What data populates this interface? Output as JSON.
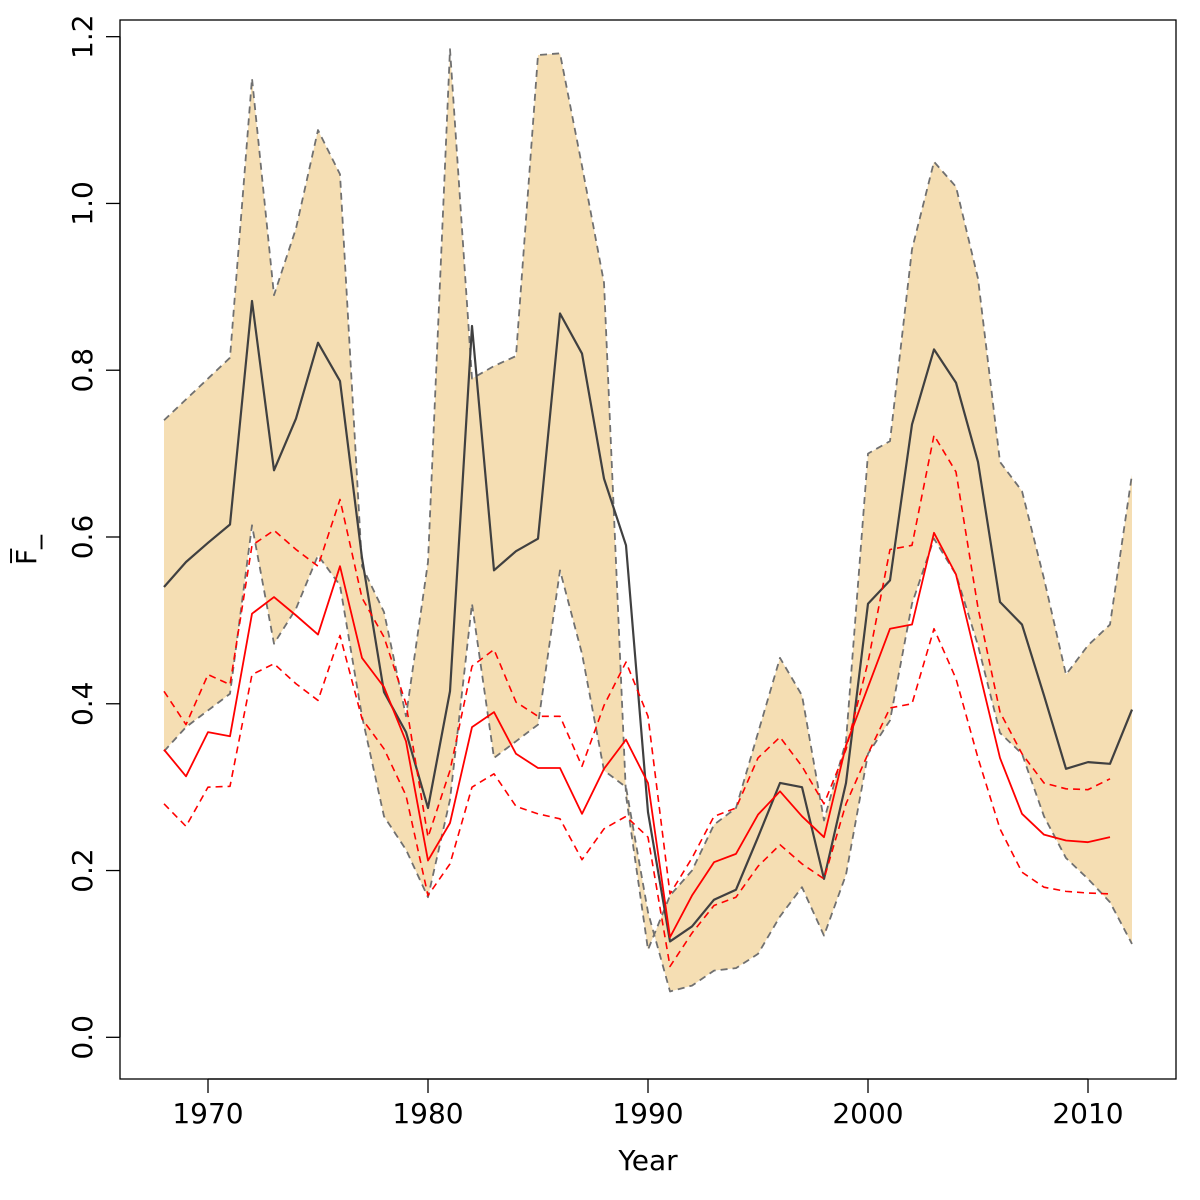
{
  "chart_data": {
    "type": "line",
    "title": "",
    "xlabel": "Year",
    "ylabel": "F̅_",
    "xlim": [
      1966,
      2014
    ],
    "ylim": [
      -0.05,
      1.22
    ],
    "x_ticks": [
      1970,
      1980,
      1990,
      2000,
      2010
    ],
    "y_ticks": [
      0.0,
      0.2,
      0.4,
      0.6,
      0.8,
      1.0,
      1.2
    ],
    "y_tick_labels": [
      "0.0",
      "0.2",
      "0.4",
      "0.6",
      "0.8",
      "1.0",
      "1.2"
    ],
    "colors": {
      "band_fill": "#f5deb3",
      "band_edge": "#707070",
      "median": "#404040",
      "red": "#ff0000"
    },
    "series": [
      {
        "name": "upper_band",
        "style": "dashed-grey",
        "x": [
          1968,
          1969,
          1970,
          1971,
          1972,
          1973,
          1974,
          1975,
          1976,
          1977,
          1978,
          1979,
          1980,
          1981,
          1982,
          1983,
          1984,
          1985,
          1986,
          1987,
          1988,
          1989,
          1990,
          1991,
          1992,
          1993,
          1994,
          1995,
          1996,
          1997,
          1998,
          1999,
          2000,
          2001,
          2002,
          2003,
          2004,
          2005,
          2006,
          2007,
          2008,
          2009,
          2010,
          2011,
          2012
        ],
        "values": [
          0.74,
          0.765,
          0.79,
          0.815,
          1.15,
          0.89,
          0.97,
          1.088,
          1.035,
          0.565,
          0.51,
          0.385,
          0.57,
          1.185,
          0.79,
          0.805,
          0.817,
          1.178,
          1.18,
          1.045,
          0.905,
          0.29,
          0.105,
          0.17,
          0.2,
          0.255,
          0.275,
          0.365,
          0.455,
          0.41,
          0.26,
          0.355,
          0.7,
          0.715,
          0.945,
          1.05,
          1.02,
          0.91,
          0.69,
          0.655,
          0.55,
          0.435,
          0.47,
          0.495,
          0.675
        ]
      },
      {
        "name": "lower_band",
        "style": "dashed-grey",
        "x": [
          1968,
          1969,
          1970,
          1971,
          1972,
          1973,
          1974,
          1975,
          1976,
          1977,
          1978,
          1979,
          1980,
          1981,
          1982,
          1983,
          1984,
          1985,
          1986,
          1987,
          1988,
          1989,
          1990,
          1991,
          1992,
          1993,
          1994,
          1995,
          1996,
          1997,
          1998,
          1999,
          2000,
          2001,
          2002,
          2003,
          2004,
          2005,
          2006,
          2007,
          2008,
          2009,
          2010,
          2011,
          2012
        ],
        "values": [
          0.343,
          0.372,
          0.392,
          0.412,
          0.614,
          0.472,
          0.514,
          0.578,
          0.542,
          0.385,
          0.265,
          0.225,
          0.168,
          0.285,
          0.52,
          0.335,
          0.355,
          0.375,
          0.56,
          0.46,
          0.32,
          0.3,
          0.15,
          0.055,
          0.062,
          0.08,
          0.083,
          0.1,
          0.145,
          0.18,
          0.122,
          0.195,
          0.34,
          0.38,
          0.52,
          0.598,
          0.555,
          0.47,
          0.365,
          0.34,
          0.265,
          0.215,
          0.19,
          0.162,
          0.112
        ]
      },
      {
        "name": "median",
        "style": "solid-dark",
        "x": [
          1968,
          1969,
          1970,
          1971,
          1972,
          1973,
          1974,
          1975,
          1976,
          1977,
          1978,
          1979,
          1980,
          1981,
          1982,
          1983,
          1984,
          1985,
          1986,
          1987,
          1988,
          1989,
          1990,
          1991,
          1992,
          1993,
          1994,
          1995,
          1996,
          1997,
          1998,
          1999,
          2000,
          2001,
          2002,
          2003,
          2004,
          2005,
          2006,
          2007,
          2008,
          2009,
          2010,
          2011,
          2012
        ],
        "values": [
          0.54,
          0.57,
          0.593,
          0.615,
          0.883,
          0.68,
          0.742,
          0.833,
          0.787,
          0.575,
          0.414,
          0.366,
          0.275,
          0.415,
          0.853,
          0.56,
          0.583,
          0.598,
          0.868,
          0.82,
          0.67,
          0.59,
          0.27,
          0.115,
          0.133,
          0.165,
          0.177,
          0.24,
          0.305,
          0.3,
          0.19,
          0.305,
          0.52,
          0.548,
          0.735,
          0.825,
          0.785,
          0.69,
          0.522,
          0.495,
          0.41,
          0.322,
          0.33,
          0.328,
          0.393
        ]
      },
      {
        "name": "red_upper",
        "style": "dashed-red",
        "x": [
          1968,
          1969,
          1970,
          1971,
          1972,
          1973,
          1974,
          1975,
          1976,
          1977,
          1978,
          1979,
          1980,
          1981,
          1982,
          1983,
          1984,
          1985,
          1986,
          1987,
          1988,
          1989,
          1990,
          1991,
          1992,
          1993,
          1994,
          1995,
          1996,
          1997,
          1998,
          1999,
          2000,
          2001,
          2002,
          2003,
          2004,
          2005,
          2006,
          2007,
          2008,
          2009,
          2010,
          2011
        ],
        "values": [
          0.415,
          0.375,
          0.435,
          0.423,
          0.59,
          0.608,
          0.585,
          0.565,
          0.645,
          0.527,
          0.48,
          0.4,
          0.24,
          0.32,
          0.445,
          0.465,
          0.402,
          0.385,
          0.385,
          0.325,
          0.398,
          0.45,
          0.385,
          0.172,
          0.215,
          0.265,
          0.275,
          0.335,
          0.36,
          0.325,
          0.28,
          0.345,
          0.45,
          0.585,
          0.59,
          0.722,
          0.678,
          0.515,
          0.39,
          0.34,
          0.305,
          0.298,
          0.297,
          0.31
        ]
      },
      {
        "name": "red_median",
        "style": "solid-red",
        "x": [
          1968,
          1969,
          1970,
          1971,
          1972,
          1973,
          1974,
          1975,
          1976,
          1977,
          1978,
          1979,
          1980,
          1981,
          1982,
          1983,
          1984,
          1985,
          1986,
          1987,
          1988,
          1989,
          1990,
          1991,
          1992,
          1993,
          1994,
          1995,
          1996,
          1997,
          1998,
          1999,
          2000,
          2001,
          2002,
          2003,
          2004,
          2005,
          2006,
          2007,
          2008,
          2009,
          2010,
          2011
        ],
        "values": [
          0.345,
          0.313,
          0.366,
          0.361,
          0.508,
          0.528,
          0.506,
          0.483,
          0.565,
          0.455,
          0.42,
          0.355,
          0.212,
          0.257,
          0.372,
          0.39,
          0.34,
          0.323,
          0.323,
          0.268,
          0.322,
          0.357,
          0.305,
          0.12,
          0.17,
          0.21,
          0.22,
          0.267,
          0.295,
          0.265,
          0.24,
          0.35,
          0.42,
          0.49,
          0.495,
          0.605,
          0.555,
          0.445,
          0.335,
          0.268,
          0.243,
          0.236,
          0.234,
          0.24
        ]
      },
      {
        "name": "red_lower",
        "style": "dashed-red",
        "x": [
          1968,
          1969,
          1970,
          1971,
          1972,
          1973,
          1974,
          1975,
          1976,
          1977,
          1978,
          1979,
          1980,
          1981,
          1982,
          1983,
          1984,
          1985,
          1986,
          1987,
          1988,
          1989,
          1990,
          1991,
          1992,
          1993,
          1994,
          1995,
          1996,
          1997,
          1998,
          1999,
          2000,
          2001,
          2002,
          2003,
          2004,
          2005,
          2006,
          2007,
          2008,
          2009,
          2010,
          2011
        ],
        "values": [
          0.28,
          0.253,
          0.3,
          0.301,
          0.435,
          0.448,
          0.424,
          0.404,
          0.482,
          0.382,
          0.346,
          0.29,
          0.17,
          0.208,
          0.3,
          0.316,
          0.277,
          0.268,
          0.262,
          0.213,
          0.25,
          0.265,
          0.24,
          0.085,
          0.125,
          0.158,
          0.168,
          0.205,
          0.231,
          0.208,
          0.19,
          0.28,
          0.34,
          0.395,
          0.4,
          0.49,
          0.43,
          0.335,
          0.25,
          0.198,
          0.18,
          0.175,
          0.173,
          0.172
        ]
      }
    ]
  }
}
